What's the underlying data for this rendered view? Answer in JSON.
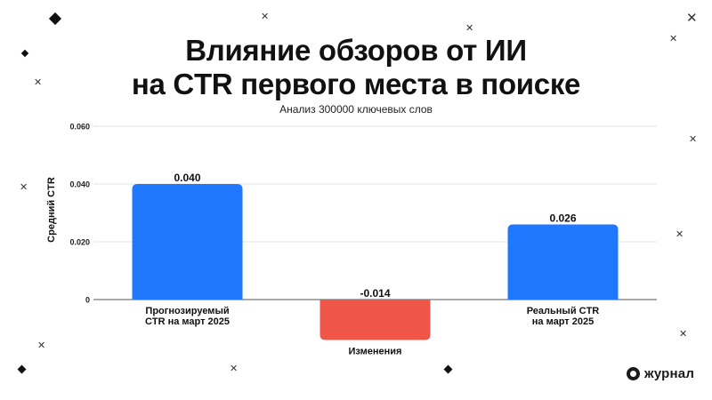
{
  "title_line1": "Влияние обзоров от ИИ",
  "title_line2": "на CTR первого места в поиске",
  "subtitle": "Анализ 300000 ключевых слов",
  "brand": {
    "name": "журнал",
    "icon": "journal-logo-icon"
  },
  "colors": {
    "positive": "#1f78ff",
    "negative": "#ef5647",
    "grid": "#e3e3e3",
    "axis": "#555555"
  },
  "chart_data": {
    "type": "bar",
    "title": "Влияние обзоров от ИИ на CTR первого места в поиске",
    "subtitle": "Анализ 300000 ключевых слов",
    "xlabel": "",
    "ylabel": "Средний CTR",
    "ylim": [
      -0.02,
      0.06
    ],
    "yticks": [
      "0",
      "0.020",
      "0.040",
      "0.060"
    ],
    "yticks_values": [
      0,
      0.02,
      0.04,
      0.06
    ],
    "categories": [
      [
        "Прогнозируемый",
        "CTR на март 2025"
      ],
      [
        "Изменения"
      ],
      [
        "Реальный CTR",
        "на март 2025"
      ]
    ],
    "values": [
      0.04,
      -0.014,
      0.026
    ],
    "value_labels": [
      "0.040",
      "-0.014",
      "0.026"
    ],
    "grid": true,
    "legend": "none"
  }
}
